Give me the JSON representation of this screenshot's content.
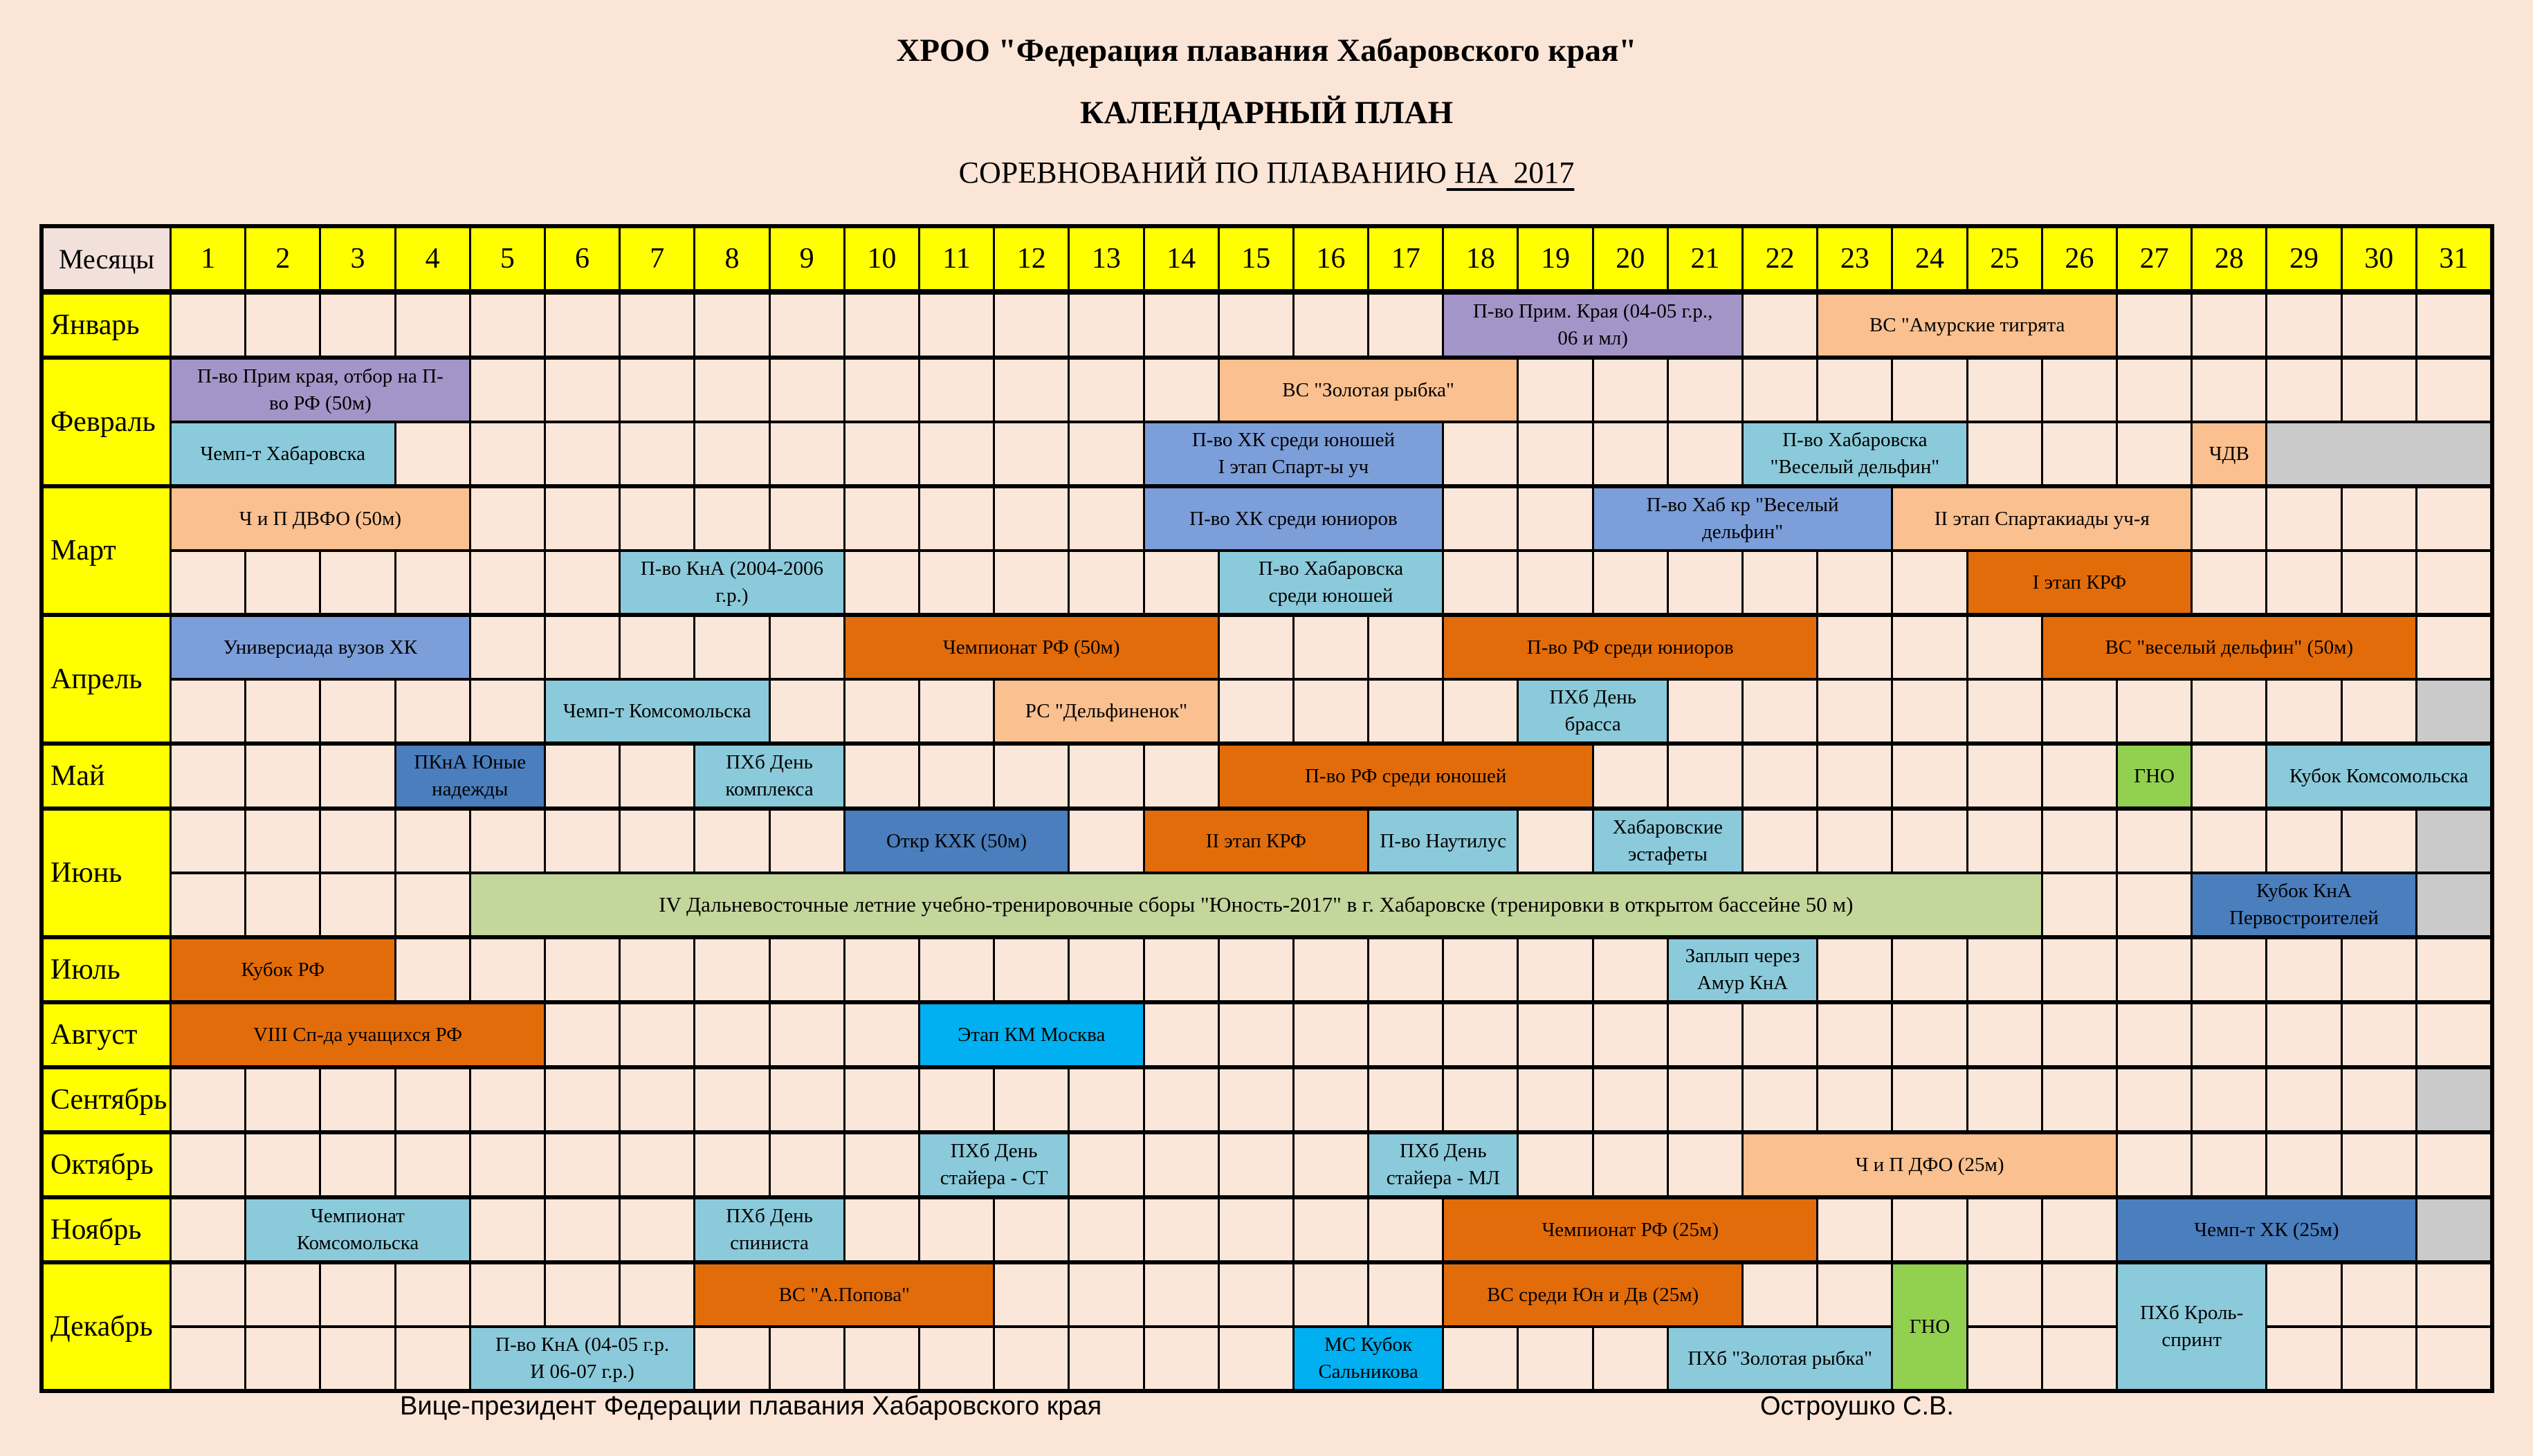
{
  "title": {
    "line1": "ХРОО \"Федерация плавания Хабаровского края\"",
    "line2": "КАЛЕНДАРНЫЙ ПЛАН",
    "line3_normal": "СОРЕВНОВАНИЙ ПО ПЛАВАНИЮ",
    "line3_underlined": " НА  2017"
  },
  "footer": {
    "left": "Вице-президент Федерации плавания Хабаровского края",
    "right": "Остроушко С.В."
  },
  "table": {
    "corner_label": "Месяцы",
    "days": [
      "1",
      "2",
      "3",
      "4",
      "5",
      "6",
      "7",
      "8",
      "9",
      "10",
      "11",
      "12",
      "13",
      "14",
      "15",
      "16",
      "17",
      "18",
      "19",
      "20",
      "21",
      "22",
      "23",
      "24",
      "25",
      "26",
      "27",
      "28",
      "29",
      "30",
      "31"
    ],
    "colors": {
      "cream": "#FAE7DA",
      "corner": "#F2E0DB",
      "yellow": "#FFFF00",
      "purple": "#A495C8",
      "sky": "#8BCADA",
      "med": "#7C9ED9",
      "dark": "#4A7EBD",
      "lorange": "#FAC08F",
      "dorange": "#E36C0A",
      "green": "#92D050",
      "olive": "#C3D69B",
      "cyan": "#00B0F0",
      "gray": "#CACACA"
    },
    "months": [
      {
        "name": "Январь",
        "rows": 1,
        "events": [
          {
            "r": 1,
            "s": 18,
            "e": 21,
            "c": "purple",
            "lines": [
              "П-во Прим. Края (04-05 г.р.,",
              "06 и мл)"
            ]
          },
          {
            "r": 1,
            "s": 23,
            "e": 26,
            "c": "lorange",
            "lines": [
              "ВС \"Амурские тигрята"
            ]
          }
        ]
      },
      {
        "name": "Февраль",
        "rows": 2,
        "events": [
          {
            "r": 1,
            "s": 1,
            "e": 4,
            "c": "purple",
            "lines": [
              "П-во Прим края, отбор на П-",
              "во РФ (50м)"
            ]
          },
          {
            "r": 1,
            "s": 15,
            "e": 18,
            "c": "lorange",
            "lines": [
              "ВС \"Золотая рыбка\""
            ]
          },
          {
            "r": 2,
            "s": 1,
            "e": 3,
            "c": "sky",
            "lines": [
              "Чемп-т Хабаровска"
            ]
          },
          {
            "r": 2,
            "s": 14,
            "e": 17,
            "c": "med",
            "lines": [
              "П-во ХК среди юношей",
              "I этап Спарт-ы уч"
            ]
          },
          {
            "r": 2,
            "s": 22,
            "e": 24,
            "c": "sky",
            "lines": [
              "П-во Хабаровска",
              "\"Веселый дельфин\""
            ]
          },
          {
            "r": 2,
            "s": 28,
            "e": 28,
            "c": "lorange",
            "lines": [
              "ЧДВ"
            ]
          },
          {
            "r": 2,
            "s": 29,
            "e": 31,
            "c": "gray",
            "lines": []
          }
        ]
      },
      {
        "name": "Март",
        "rows": 2,
        "events": [
          {
            "r": 1,
            "s": 1,
            "e": 4,
            "c": "lorange",
            "lines": [
              "Ч и П ДВФО (50м)"
            ]
          },
          {
            "r": 1,
            "s": 14,
            "e": 17,
            "c": "med",
            "lines": [
              "П-во ХК среди юниоров"
            ]
          },
          {
            "r": 1,
            "s": 20,
            "e": 23,
            "c": "med",
            "lines": [
              "П-во Хаб кр \"Веселый",
              "дельфин\""
            ]
          },
          {
            "r": 1,
            "s": 24,
            "e": 27,
            "c": "lorange",
            "lines": [
              "II этап Спартакиады уч-я"
            ]
          },
          {
            "r": 2,
            "s": 7,
            "e": 9,
            "c": "sky",
            "lines": [
              "П-во КнА (2004-2006",
              "г.р.)"
            ]
          },
          {
            "r": 2,
            "s": 15,
            "e": 17,
            "c": "sky",
            "lines": [
              "П-во Хабаровска",
              "среди юношей"
            ]
          },
          {
            "r": 2,
            "s": 25,
            "e": 27,
            "c": "dorange",
            "lines": [
              "I этап КРФ"
            ]
          }
        ]
      },
      {
        "name": "Апрель",
        "rows": 2,
        "events": [
          {
            "r": 1,
            "s": 1,
            "e": 4,
            "c": "med",
            "lines": [
              "Универсиада вузов ХК"
            ]
          },
          {
            "r": 1,
            "s": 10,
            "e": 14,
            "c": "dorange",
            "lines": [
              "Чемпионат РФ (50м)"
            ]
          },
          {
            "r": 1,
            "s": 18,
            "e": 22,
            "c": "dorange",
            "lines": [
              "П-во РФ среди юниоров"
            ]
          },
          {
            "r": 1,
            "s": 26,
            "e": 30,
            "c": "dorange",
            "lines": [
              "ВС \"веселый дельфин\" (50м)"
            ]
          },
          {
            "r": 2,
            "s": 6,
            "e": 8,
            "c": "sky",
            "lines": [
              "Чемп-т Комсомольска"
            ]
          },
          {
            "r": 2,
            "s": 12,
            "e": 14,
            "c": "lorange",
            "lines": [
              "РС \"Дельфиненок\""
            ]
          },
          {
            "r": 2,
            "s": 19,
            "e": 20,
            "c": "sky",
            "lines": [
              "ПХб День",
              "брасса"
            ]
          },
          {
            "r": 2,
            "s": 31,
            "e": 31,
            "c": "gray",
            "lines": []
          }
        ]
      },
      {
        "name": "Май",
        "rows": 1,
        "events": [
          {
            "r": 1,
            "s": 4,
            "e": 5,
            "c": "dark",
            "lines": [
              "ПКнА Юные",
              "надежды"
            ]
          },
          {
            "r": 1,
            "s": 8,
            "e": 9,
            "c": "sky",
            "lines": [
              "ПХб День",
              "комплекса"
            ]
          },
          {
            "r": 1,
            "s": 15,
            "e": 19,
            "c": "dorange",
            "lines": [
              "П-во РФ среди юношей"
            ]
          },
          {
            "r": 1,
            "s": 27,
            "e": 27,
            "c": "green",
            "lines": [
              "ГНО"
            ]
          },
          {
            "r": 1,
            "s": 29,
            "e": 31,
            "c": "sky",
            "lines": [
              "Кубок Комсомольска"
            ]
          }
        ]
      },
      {
        "name": "Июнь",
        "rows": 2,
        "events": [
          {
            "r": 1,
            "s": 10,
            "e": 12,
            "c": "dark",
            "lines": [
              "Откр КХК (50м)"
            ]
          },
          {
            "r": 1,
            "s": 14,
            "e": 16,
            "c": "dorange",
            "lines": [
              "II этап КРФ"
            ]
          },
          {
            "r": 1,
            "s": 17,
            "e": 18,
            "c": "sky",
            "lines": [
              "П-во Наутилус"
            ]
          },
          {
            "r": 1,
            "s": 20,
            "e": 21,
            "c": "sky",
            "lines": [
              "Хабаровские",
              "эстафеты"
            ]
          },
          {
            "r": 1,
            "s": 31,
            "e": 31,
            "c": "gray",
            "lines": []
          },
          {
            "r": 2,
            "s": 5,
            "e": 25,
            "c": "olive",
            "big": true,
            "lines": [
              "IV  Дальневосточные летние учебно-тренировочные сборы \"Юность-2017\" в г. Хабаровске (тренировки в открытом бассейне 50 м)"
            ]
          },
          {
            "r": 2,
            "s": 28,
            "e": 30,
            "c": "dark",
            "lines": [
              "Кубок  КнА",
              "Первостроителей"
            ]
          },
          {
            "r": 2,
            "s": 31,
            "e": 31,
            "c": "gray",
            "lines": []
          }
        ]
      },
      {
        "name": "Июль",
        "rows": 1,
        "events": [
          {
            "r": 1,
            "s": 1,
            "e": 3,
            "c": "dorange",
            "lines": [
              "Кубок РФ"
            ]
          },
          {
            "r": 1,
            "s": 21,
            "e": 22,
            "c": "sky",
            "lines": [
              "Заплып через",
              "Амур КнА"
            ]
          }
        ]
      },
      {
        "name": "Август",
        "rows": 1,
        "events": [
          {
            "r": 1,
            "s": 1,
            "e": 5,
            "c": "dorange",
            "lines": [
              "VIII Сп-да учащихся РФ"
            ]
          },
          {
            "r": 1,
            "s": 11,
            "e": 13,
            "c": "cyan",
            "lines": [
              "Этап КМ Москва"
            ]
          }
        ]
      },
      {
        "name": "Сентябрь",
        "rows": 1,
        "events": [
          {
            "r": 1,
            "s": 31,
            "e": 31,
            "c": "gray",
            "lines": []
          }
        ]
      },
      {
        "name": "Октябрь",
        "rows": 1,
        "events": [
          {
            "r": 1,
            "s": 11,
            "e": 12,
            "c": "sky",
            "lines": [
              "ПХб День",
              "стайера - СТ"
            ]
          },
          {
            "r": 1,
            "s": 17,
            "e": 18,
            "c": "sky",
            "lines": [
              "ПХб День",
              "стайера - МЛ"
            ]
          },
          {
            "r": 1,
            "s": 22,
            "e": 26,
            "c": "lorange",
            "lines": [
              "Ч и П ДФО (25м)"
            ]
          }
        ]
      },
      {
        "name": "Ноябрь",
        "rows": 1,
        "events": [
          {
            "r": 1,
            "s": 2,
            "e": 4,
            "c": "sky",
            "lines": [
              "Чемпионат",
              "Комсомольска"
            ]
          },
          {
            "r": 1,
            "s": 8,
            "e": 9,
            "c": "sky",
            "lines": [
              "ПХб День",
              "спиниста"
            ]
          },
          {
            "r": 1,
            "s": 18,
            "e": 22,
            "c": "dorange",
            "lines": [
              "Чемпионат РФ (25м)"
            ]
          },
          {
            "r": 1,
            "s": 27,
            "e": 30,
            "c": "dark",
            "lines": [
              "Чемп-т ХК (25м)"
            ]
          },
          {
            "r": 1,
            "s": 31,
            "e": 31,
            "c": "gray",
            "lines": []
          }
        ]
      },
      {
        "name": "Декабрь",
        "rows": 2,
        "events": [
          {
            "r": 1,
            "s": 8,
            "e": 11,
            "c": "dorange",
            "lines": [
              "ВС \"А.Попова\""
            ]
          },
          {
            "r": 1,
            "s": 18,
            "e": 21,
            "c": "dorange",
            "lines": [
              "ВС среди Юн и Дв (25м)"
            ]
          },
          {
            "r": 1,
            "s": 24,
            "e": 24,
            "c": "green",
            "rs": 2,
            "lines": [
              "ГНО"
            ]
          },
          {
            "r": 1,
            "s": 27,
            "e": 28,
            "c": "sky",
            "rs": 2,
            "lines": [
              "ПХб Кроль-",
              "спринт"
            ]
          },
          {
            "r": 2,
            "s": 5,
            "e": 7,
            "c": "sky",
            "lines": [
              "П-во КнА (04-05 г.р.",
              "И 06-07 г.р.)"
            ]
          },
          {
            "r": 2,
            "s": 16,
            "e": 17,
            "c": "cyan",
            "lines": [
              "МС Кубок",
              "Сальникова"
            ]
          },
          {
            "r": 2,
            "s": 21,
            "e": 23,
            "c": "sky",
            "lines": [
              "ПХб \"Золотая рыбка\""
            ]
          }
        ]
      }
    ]
  }
}
